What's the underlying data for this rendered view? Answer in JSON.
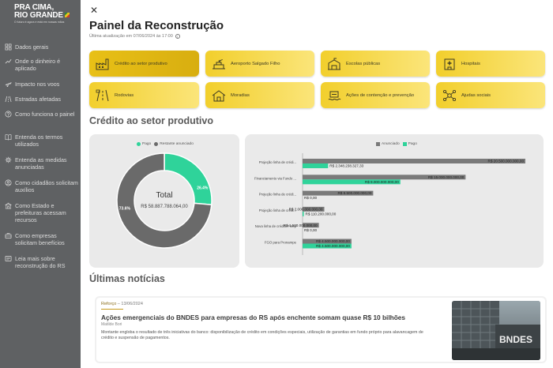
{
  "brand": {
    "line1": "PRA CIMA,",
    "line2": "RIO GRANDE",
    "tagline": "O futuro é agora e está em nossas mãos"
  },
  "sidebar": {
    "items": [
      {
        "label": "Dados gerais",
        "icon": "grid-icon"
      },
      {
        "label": "Onde o dinheiro é aplicado",
        "icon": "chart-line-icon"
      },
      {
        "label": "Impacto nos voos",
        "icon": "plane-icon"
      },
      {
        "label": "Estradas afetadas",
        "icon": "road-icon"
      },
      {
        "label": "Como funciona o painel",
        "icon": "help-icon"
      },
      {
        "label": "Entenda os termos utilizados",
        "icon": "book-icon"
      },
      {
        "label": "Entenda as medidas anunciadas",
        "icon": "gear-icon"
      },
      {
        "label": "Como cidadãos solicitam auxílios",
        "icon": "user-icon"
      },
      {
        "label": "Como Estado e prefeituras acessam recursos",
        "icon": "building-icon"
      },
      {
        "label": "Como empresas solicitam benefícios",
        "icon": "briefcase-icon"
      },
      {
        "label": "Leia mais sobre reconstrução do RS",
        "icon": "news-icon"
      }
    ]
  },
  "header": {
    "title": "Painel da Reconstrução",
    "updated": "Última atualização em 07/06/2024 às 17:00"
  },
  "tiles": [
    {
      "label": "Crédito ao setor produtivo",
      "icon": "factory-icon",
      "active": true
    },
    {
      "label": "Aeroporto Salgado Filho",
      "icon": "airport-icon",
      "active": false
    },
    {
      "label": "Escolas públicas",
      "icon": "school-icon",
      "active": false
    },
    {
      "label": "Hospitais",
      "icon": "hospital-icon",
      "active": false
    },
    {
      "label": "Rodovias",
      "icon": "highway-icon",
      "active": false
    },
    {
      "label": "Moradias",
      "icon": "house-icon",
      "active": false
    },
    {
      "label": "Ações de contenção e prevenção",
      "icon": "prevention-icon",
      "active": false
    },
    {
      "label": "Ajudas sociais",
      "icon": "network-icon",
      "active": false
    }
  ],
  "section_title": "Crédito ao setor produtivo",
  "chart_data": [
    {
      "type": "pie",
      "legend": [
        "Pago",
        "Restante anunciado"
      ],
      "center_label": "Total",
      "center_value": "R$ 58.887.788.064,00",
      "slices": [
        {
          "name": "Pago",
          "value": 26.4,
          "label": "26.4%"
        },
        {
          "name": "Restante anunciado",
          "value": 73.6,
          "label": "73.6%"
        }
      ],
      "colors": {
        "Pago": "#2fd39a",
        "Restante anunciado": "#6a6a6a"
      }
    },
    {
      "type": "bar",
      "orientation": "horizontal",
      "legend": [
        "Anunciado",
        "Pago"
      ],
      "categories": [
        "Projeção linha de crédi...",
        "Financiamento via Fundo ...",
        "Projeção linha de crédi...",
        "Projeção linha de crédi...",
        "Nova linha de crédito Finep",
        "FGO para Pronampe"
      ],
      "series": [
        {
          "name": "Anunciado",
          "values": [
            20500000000,
            15000000000,
            6500000000,
            2000000000,
            1500000000,
            4500000000
          ],
          "labels": [
            "R$ 20.500.000.000,00",
            "R$ 15.000.000.000,00",
            "R$ 6.500.000.000,00",
            "R$ 2.000.000.000,00",
            "R$ 1.500.000.000,00",
            "R$ 4.500.000.000,00"
          ]
        },
        {
          "name": "Pago",
          "values": [
            2348238327.33,
            9000000000,
            0,
            110200000,
            0,
            4500000000
          ],
          "labels": [
            "R$ 2.348.238.327,33",
            "R$ 9.000.000.000,00",
            "R$ 0,00",
            "R$ 110.200.000,00",
            "R$ 0,00",
            "R$ 4.500.000.000,00"
          ]
        }
      ],
      "colors": {
        "Anunciado": "#7a7a7a",
        "Pago": "#2fd39a"
      }
    }
  ],
  "news_section_title": "Últimas notícias",
  "news": {
    "category": "Reforço",
    "date": "13/06/2024",
    "title": "Ações emergenciais do BNDES para empresas do RS após enchente somam quase R$ 10 bilhões",
    "author": "Matilde Bori",
    "body": "Montante engloba o resultado de três iniciativas do banco: disponibilização de crédito em condições especiais, utilização de garantias em fundo próprio para alavancagem de crédito e suspensão de pagamentos.",
    "image_sign": "BNDES"
  }
}
